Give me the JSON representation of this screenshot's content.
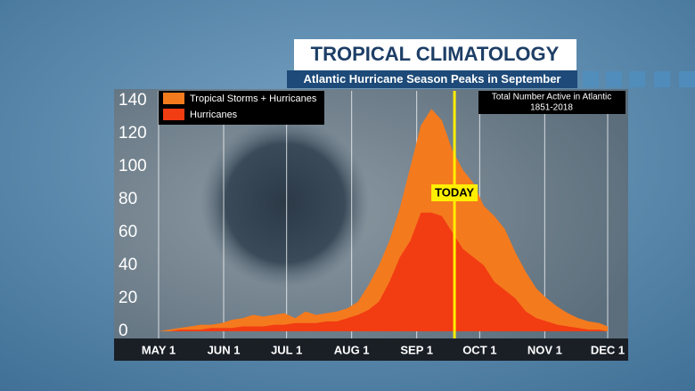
{
  "chart_data": {
    "type": "area",
    "title": "TROPICAL CLIMATOLOGY",
    "subtitle": "Atlantic Hurricane Season Peaks in September",
    "note": [
      "Total Number Active in Atlantic",
      "1851-2018"
    ],
    "annotation": {
      "label": "TODAY",
      "x": 141
    },
    "x": [
      0,
      5,
      10,
      15,
      20,
      25,
      30,
      35,
      40,
      45,
      50,
      55,
      60,
      65,
      70,
      75,
      80,
      85,
      90,
      95,
      100,
      105,
      110,
      115,
      120,
      125,
      130,
      135,
      140,
      145,
      150,
      155,
      160,
      165,
      170,
      175,
      180,
      185,
      190,
      195,
      200,
      205,
      210,
      214
    ],
    "series": [
      {
        "name": "Tropical Storms + Hurricanes",
        "color": "#f47a1e",
        "values": [
          0,
          1,
          2,
          3,
          4,
          4,
          5,
          7,
          8,
          10,
          9,
          10,
          11,
          8,
          12,
          10,
          11,
          12,
          14,
          18,
          28,
          40,
          55,
          75,
          100,
          125,
          135,
          128,
          110,
          98,
          90,
          76,
          70,
          62,
          48,
          36,
          26,
          20,
          15,
          11,
          8,
          6,
          5,
          3
        ]
      },
      {
        "name": "Hurricanes",
        "color": "#f23c12",
        "values": [
          0,
          0,
          1,
          1,
          1,
          2,
          2,
          2,
          3,
          3,
          3,
          4,
          4,
          5,
          5,
          5,
          6,
          6,
          8,
          10,
          13,
          18,
          30,
          45,
          55,
          72,
          72,
          70,
          60,
          50,
          45,
          40,
          30,
          25,
          20,
          12,
          8,
          6,
          4,
          3,
          2,
          1,
          1,
          0
        ]
      }
    ],
    "xlim": [
      0,
      214
    ],
    "xticks": [
      {
        "value": 0,
        "label": "MAY 1"
      },
      {
        "value": 31,
        "label": "JUN 1"
      },
      {
        "value": 61,
        "label": "JUL 1"
      },
      {
        "value": 92,
        "label": "AUG 1"
      },
      {
        "value": 123,
        "label": "SEP 1"
      },
      {
        "value": 153,
        "label": "OCT 1"
      },
      {
        "value": 184,
        "label": "NOV 1"
      },
      {
        "value": 214,
        "label": "DEC 1"
      }
    ],
    "ylim": [
      0,
      140
    ],
    "yticks": [
      0,
      20,
      40,
      60,
      80,
      100,
      120,
      140
    ],
    "grid": "x",
    "legend": "upper left"
  }
}
